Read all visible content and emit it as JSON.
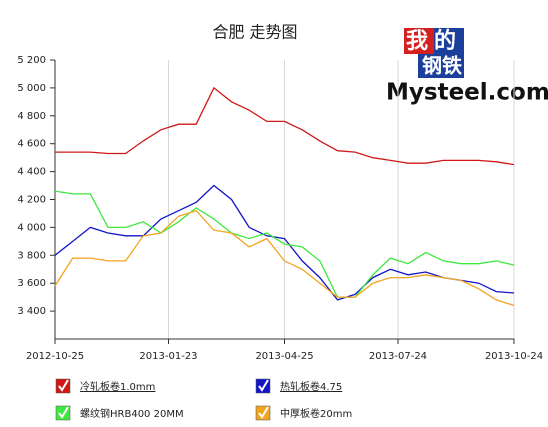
{
  "chart_data": {
    "type": "line",
    "title": "合肥 走势图",
    "logo": {
      "lines": [
        "我的",
        "钢铁"
      ],
      "site": "Mysteel.com"
    },
    "x": [
      "2012-10-25",
      "2012-11-08",
      "2012-11-22",
      "2012-12-06",
      "2012-12-20",
      "2013-01-03",
      "2013-01-17",
      "2013-01-31",
      "2013-02-14",
      "2013-02-28",
      "2013-03-14",
      "2013-03-28",
      "2013-04-11",
      "2013-04-25",
      "2013-05-09",
      "2013-05-23",
      "2013-06-06",
      "2013-06-20",
      "2013-07-04",
      "2013-07-18",
      "2013-08-01",
      "2013-08-15",
      "2013-08-29",
      "2013-09-12",
      "2013-09-26",
      "2013-10-10",
      "2013-10-24"
    ],
    "series": [
      {
        "name": "冷轧板卷1.0mm",
        "color": "#d01818",
        "values": [
          4540,
          4540,
          4540,
          4530,
          4530,
          4620,
          4700,
          4740,
          4740,
          5000,
          4900,
          4840,
          4760,
          4760,
          4700,
          4620,
          4550,
          4540,
          4500,
          4480,
          4460,
          4460,
          4480,
          4480,
          4480,
          4470,
          4450
        ]
      },
      {
        "name": "热轧板卷4.75",
        "color": "#1414c8",
        "values": [
          3800,
          3900,
          4000,
          3960,
          3940,
          3940,
          4060,
          4120,
          4180,
          4300,
          4200,
          4000,
          3940,
          3920,
          3760,
          3640,
          3480,
          3520,
          3640,
          3700,
          3660,
          3680,
          3640,
          3620,
          3600,
          3540,
          3530
        ]
      },
      {
        "name": "螺纹钢HRB400 20MM",
        "color": "#3ee83e",
        "values": [
          4260,
          4240,
          4240,
          4000,
          4000,
          4040,
          3960,
          4040,
          4140,
          4060,
          3960,
          3920,
          3960,
          3880,
          3860,
          3760,
          3500,
          3500,
          3660,
          3780,
          3740,
          3820,
          3760,
          3740,
          3740,
          3760,
          3730
        ]
      },
      {
        "name": "中厚板卷20mm",
        "color": "#f2a41e",
        "values": [
          3580,
          3780,
          3780,
          3760,
          3760,
          3940,
          3960,
          4080,
          4120,
          3980,
          3960,
          3860,
          3920,
          3760,
          3700,
          3600,
          3500,
          3500,
          3600,
          3640,
          3640,
          3660,
          3640,
          3620,
          3560,
          3480,
          3440
        ]
      }
    ],
    "xlim": [
      "2012-10-25",
      "2013-10-24"
    ],
    "xticks": [
      "2012-10-25",
      "2013-01-23",
      "2013-04-25",
      "2013-07-24",
      "2013-10-24"
    ],
    "ylim": [
      3200,
      5200
    ],
    "yticks": [
      {
        "value": 3400,
        "label": "3 400"
      },
      {
        "value": 3600,
        "label": "3 600"
      },
      {
        "value": 3800,
        "label": "3 800"
      },
      {
        "value": 4000,
        "label": "4 000"
      },
      {
        "value": 4200,
        "label": "4 200"
      },
      {
        "value": 4400,
        "label": "4 400"
      },
      {
        "value": 4600,
        "label": "4 600"
      },
      {
        "value": 4800,
        "label": "4 800"
      },
      {
        "value": 5000,
        "label": "5 000"
      },
      {
        "value": 5200,
        "label": "5 200"
      }
    ],
    "xgrid": true
  }
}
